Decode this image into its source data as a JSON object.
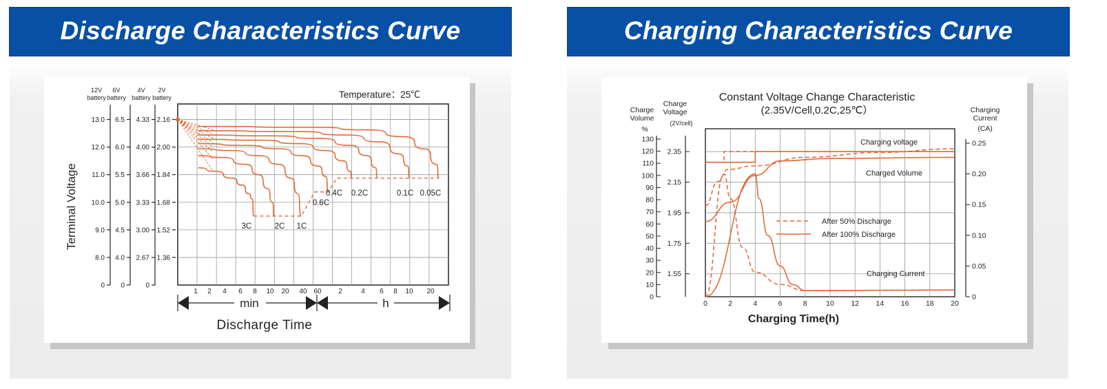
{
  "colors": {
    "banner": "#0750a6",
    "curve": "#e06a3a",
    "grid": "#9a9a9a"
  },
  "discharge": {
    "banner_title": "Discharge Characteristics Curve",
    "temperature_label": "Temperature：25℃",
    "ylabel": "Terminal Voltage",
    "xlabel": "Discharge  Time",
    "min_label": "min",
    "h_label": "h",
    "chart_data": {
      "type": "line",
      "title": "",
      "xlabel": "Discharge  Time",
      "ylabel": "Terminal Voltage",
      "axis_headers": [
        {
          "line1": "12V",
          "line2": "battery"
        },
        {
          "line1": "6V",
          "line2": "battery"
        },
        {
          "line1": "4V",
          "line2": "battery"
        },
        {
          "line1": "2V",
          "line2": "battery"
        }
      ],
      "y_axes": [
        [
          "13.0",
          "12.0",
          "11.0",
          "10.0",
          "9.0",
          "8.0",
          "0"
        ],
        [
          "6.5",
          "6.0",
          "5.5",
          "5.0",
          "4.5",
          "4.0",
          "0"
        ],
        [
          "4.33",
          "4.00",
          "3.66",
          "3.33",
          "3.00",
          "2.67",
          "0"
        ],
        [
          "2.16",
          "2.00",
          "1.84",
          "1.68",
          "1.52",
          "1.36",
          ""
        ]
      ],
      "x_ticks_min": [
        "1",
        "2",
        "4",
        "6",
        "8",
        "10",
        "20",
        "40",
        "60"
      ],
      "x_ticks_h": [
        "2",
        "4",
        "6",
        "8",
        "10",
        "20"
      ],
      "x_positions": [
        0.6,
        0.666,
        0.7,
        0.733,
        0.766,
        0.8,
        0.9,
        1.0,
        1.0333,
        1.1,
        1.2,
        1.3,
        1.4,
        1.5,
        1.6
      ],
      "series": [
        {
          "name": "3C",
          "points": [
            [
              0.6,
              1.88
            ],
            [
              1.1,
              1.86
            ],
            [
              1.6,
              1.82
            ],
            [
              1.9,
              1.78
            ],
            [
              2.1,
              1.73
            ],
            [
              2.2,
              1.7
            ],
            [
              2.25,
              1.6
            ]
          ]
        },
        {
          "name": "2C",
          "points": [
            [
              0.6,
              1.95
            ],
            [
              1.3,
              1.94
            ],
            [
              2.0,
              1.9
            ],
            [
              2.4,
              1.84
            ],
            [
              2.65,
              1.76
            ],
            [
              2.8,
              1.68
            ],
            [
              2.85,
              1.6
            ]
          ]
        },
        {
          "name": "1C",
          "points": [
            [
              0.6,
              1.99
            ],
            [
              1.6,
              1.98
            ],
            [
              2.4,
              1.95
            ],
            [
              3.0,
              1.9
            ],
            [
              3.35,
              1.82
            ],
            [
              3.55,
              1.73
            ],
            [
              3.65,
              1.6
            ]
          ]
        },
        {
          "name": "0.6C",
          "points": [
            [
              0.6,
              2.02
            ],
            [
              2.0,
              2.01
            ],
            [
              3.0,
              1.99
            ],
            [
              3.7,
              1.95
            ],
            [
              4.15,
              1.89
            ],
            [
              4.38,
              1.83
            ],
            [
              4.45,
              1.74
            ]
          ]
        },
        {
          "name": "0.4C",
          "points": [
            [
              0.6,
              2.045
            ],
            [
              2.4,
              2.04
            ],
            [
              3.6,
              2.02
            ],
            [
              4.4,
              1.98
            ],
            [
              4.9,
              1.92
            ],
            [
              5.1,
              1.86
            ],
            [
              5.15,
              1.82
            ]
          ]
        },
        {
          "name": "0.2C",
          "points": [
            [
              0.6,
              2.07
            ],
            [
              2.8,
              2.065
            ],
            [
              4.2,
              2.05
            ],
            [
              5.1,
              2.01
            ],
            [
              5.6,
              1.95
            ],
            [
              5.85,
              1.88
            ],
            [
              5.9,
              1.82
            ]
          ]
        },
        {
          "name": "0.1C",
          "points": [
            [
              0.6,
              2.095
            ],
            [
              3.5,
              2.09
            ],
            [
              5.0,
              2.07
            ],
            [
              6.0,
              2.03
            ],
            [
              6.55,
              1.96
            ],
            [
              6.8,
              1.89
            ],
            [
              6.85,
              1.82
            ]
          ]
        },
        {
          "name": "0.05C",
          "points": [
            [
              0.6,
              2.12
            ],
            [
              4.0,
              2.115
            ],
            [
              5.6,
              2.1
            ],
            [
              6.7,
              2.06
            ],
            [
              7.3,
              1.99
            ],
            [
              7.65,
              1.9
            ],
            [
              7.72,
              1.82
            ]
          ]
        }
      ],
      "cutoff_line": [
        [
          2.25,
          1.6
        ],
        [
          3.65,
          1.6
        ],
        [
          3.85,
          1.67
        ],
        [
          4.05,
          1.74
        ],
        [
          4.45,
          1.74
        ],
        [
          4.7,
          1.82
        ],
        [
          7.72,
          1.82
        ]
      ],
      "initial_point": [
        0.0,
        2.16
      ],
      "curve_labels": [
        "3C",
        "2C",
        "1C",
        "0.6C",
        "0.4C",
        "0.2C",
        "0.1C",
        "0.05C"
      ]
    }
  },
  "charging": {
    "banner_title": "Charging Characteristics Curve",
    "chart_title_line1": "Constant Voltage Change Characteristic",
    "chart_title_line2": "(2.35V/Cell,0.2C,25℃）",
    "axis_headers": {
      "volume": {
        "line1": "Charge",
        "line2": "Volume",
        "line3": "%"
      },
      "voltage": {
        "line1": "Charge",
        "line2": "Voltage",
        "line3": "(2V/cell)"
      },
      "current": {
        "line1": "Charging",
        "line2": "Current",
        "line3": "(CA)"
      }
    },
    "chart_data": {
      "type": "line",
      "title": "Constant Voltage Change Characteristic",
      "subtitle": "(2.35V/Cell,0.2C,25℃）",
      "xlabel": "Charging Time(h)",
      "x_ticks": [
        "0",
        "2",
        "4",
        "6",
        "8",
        "10",
        "12",
        "14",
        "16",
        "18",
        "20"
      ],
      "xlim": [
        0,
        20
      ],
      "volume_ticks": [
        "130",
        "120",
        "110",
        "100",
        "90",
        "80",
        "70",
        "60",
        "50",
        "40",
        "30",
        "20",
        "10",
        "0"
      ],
      "voltage_ticks": [
        "2.35",
        "2.15",
        "1.95",
        "1.75",
        "1.55"
      ],
      "current_ticks": [
        "0.25",
        "0.20",
        "0.15",
        "0.10",
        "0.05",
        "0"
      ],
      "series_labels": [
        "Charging voltage",
        "Charged Volume",
        "Charging Current"
      ],
      "legend": [
        {
          "style": "dashed",
          "label": "After 50% Discharge"
        },
        {
          "style": "solid",
          "label": "After 100% Discharge"
        }
      ],
      "series": [
        {
          "name": "Charging voltage",
          "style": "solid",
          "points": [
            [
              0,
              2.28
            ],
            [
              4,
              2.28
            ],
            [
              4,
              2.35
            ],
            [
              20,
              2.35
            ]
          ]
        },
        {
          "name": "Charging voltage",
          "style": "dashed",
          "points": [
            [
              0,
              2.28
            ],
            [
              1.5,
              2.28
            ],
            [
              1.5,
              2.35
            ],
            [
              20,
              2.35
            ]
          ]
        },
        {
          "name": "Charged Volume",
          "style": "solid",
          "points": [
            [
              0,
              62
            ],
            [
              2,
              78
            ],
            [
              4,
              100
            ],
            [
              6,
              112
            ],
            [
              10,
              114
            ],
            [
              20,
              115
            ]
          ]
        },
        {
          "name": "Charged Volume",
          "style": "dashed",
          "points": [
            [
              0,
              75
            ],
            [
              1,
              95
            ],
            [
              1.8,
              105
            ],
            [
              4,
              108
            ],
            [
              8,
              115
            ],
            [
              14,
              119
            ],
            [
              20,
              122
            ]
          ]
        },
        {
          "name": "Charging Current",
          "style": "solid",
          "points": [
            [
              0,
              0
            ],
            [
              4,
              0.2
            ],
            [
              4.3,
              0.16
            ],
            [
              5,
              0.1
            ],
            [
              6,
              0.05
            ],
            [
              7,
              0.02
            ],
            [
              8,
              0.01
            ],
            [
              20,
              0.011
            ]
          ]
        },
        {
          "name": "Charging Current",
          "style": "dashed",
          "points": [
            [
              0,
              0
            ],
            [
              1.5,
              0.2
            ],
            [
              2,
              0.16
            ],
            [
              3,
              0.08
            ],
            [
              4,
              0.04
            ],
            [
              6,
              0.02
            ],
            [
              8,
              0.01
            ],
            [
              20,
              0.011
            ]
          ]
        }
      ]
    }
  }
}
